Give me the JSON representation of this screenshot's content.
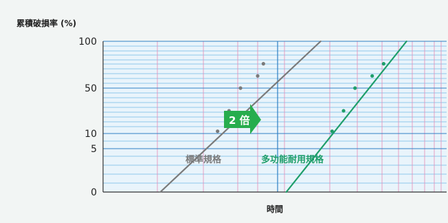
{
  "chart_data": {
    "type": "scatter",
    "title": "",
    "ylabel": "累積破損率 (%)",
    "xlabel": "時間",
    "y_scale": "probability",
    "y_ticks": [
      {
        "value": 0,
        "label": "0"
      },
      {
        "value": 5,
        "label": "5"
      },
      {
        "value": 10,
        "label": "10"
      },
      {
        "value": 50,
        "label": "50"
      },
      {
        "value": 100,
        "label": "100"
      }
    ],
    "series": [
      {
        "name": "標準規格",
        "color": "#7a7a7a",
        "points": [
          {
            "x": 1.0,
            "y": 12
          },
          {
            "x": 1.1,
            "y": 30
          },
          {
            "x": 1.2,
            "y": 50
          },
          {
            "x": 1.35,
            "y": 63
          },
          {
            "x": 1.4,
            "y": 76
          }
        ],
        "fit_line": {
          "x": [
            0.5,
            1.9
          ],
          "y": [
            0,
            100
          ]
        }
      },
      {
        "name": "多功能耐用規格",
        "color": "#1e9e6a",
        "points": [
          {
            "x": 2.0,
            "y": 12
          },
          {
            "x": 2.1,
            "y": 30
          },
          {
            "x": 2.2,
            "y": 50
          },
          {
            "x": 2.35,
            "y": 63
          },
          {
            "x": 2.45,
            "y": 76
          }
        ],
        "fit_line": {
          "x": [
            1.6,
            2.65
          ],
          "y": [
            0,
            100
          ]
        }
      }
    ],
    "annotation": {
      "text": "2 倍",
      "color": "#27ad4d"
    },
    "grid": true,
    "grid_colors": {
      "horizontal": "#72b9e6",
      "vertical": "#e58cb6",
      "reference": "#2f7fc4"
    }
  }
}
